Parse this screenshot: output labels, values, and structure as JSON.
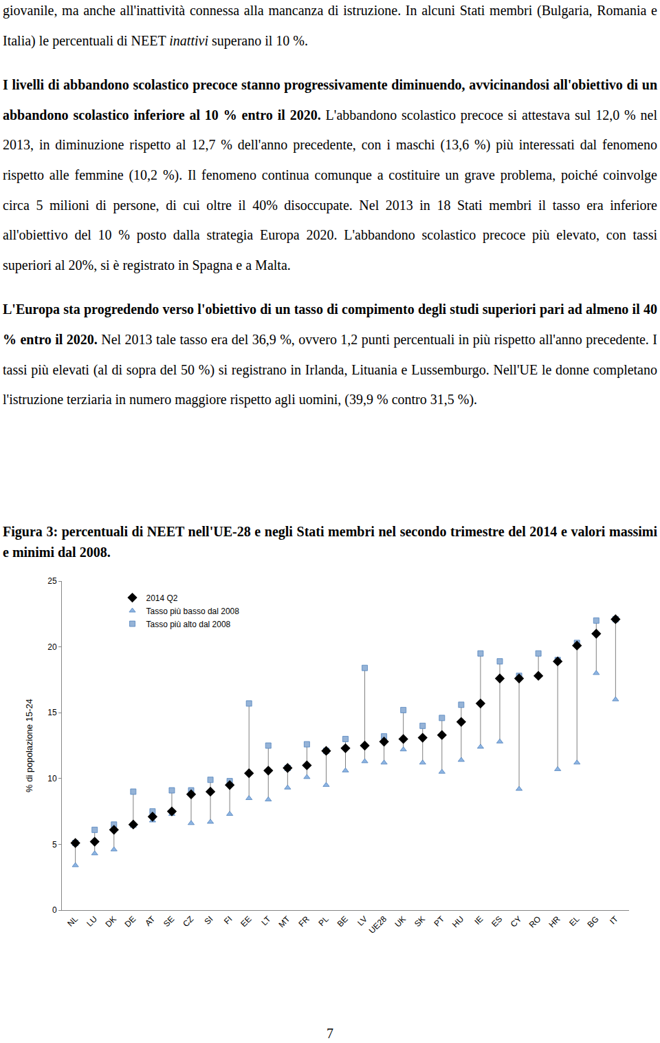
{
  "paragraphs": [
    [
      {
        "text": "giovanile, ma anche all'inattività connessa alla mancanza di istruzione. In alcuni Stati membri (Bulgaria, Romania e Italia) le percentuali di NEET "
      },
      {
        "text": "inattivi",
        "italic": true
      },
      {
        "text": " superano il 10 %."
      }
    ],
    [
      {
        "text": "I livelli di abbandono scolastico precoce stanno progressivamente diminuendo, avvicinandosi all'obiettivo di un abbandono scolastico inferiore al 10 % entro il 2020.",
        "bold": true
      },
      {
        "text": " L'abbandono scolastico precoce si attestava sul 12,0 % nel 2013, in diminuzione rispetto al 12,7 % dell'anno precedente, con i maschi (13,6 %) più interessati dal fenomeno rispetto alle femmine (10,2 %). Il fenomeno continua comunque a costituire un grave problema, poiché coinvolge circa 5 milioni di persone, di cui oltre il 40% disoccupate. Nel 2013 in 18 Stati membri il tasso era inferiore all'obiettivo del 10 %  posto dalla strategia Europa 2020. L'abbandono scolastico precoce più elevato, con tassi superiori al 20%, si è registrato in Spagna e a Malta."
      }
    ],
    [
      {
        "text": "L'Europa sta progredendo verso l'obiettivo di un tasso di compimento degli studi superiori pari ad almeno il 40 % entro il 2020.",
        "bold": true
      },
      {
        "text": " Nel 2013 tale tasso era del 36,9 %, ovvero 1,2 punti percentuali in più rispetto all'anno precedente. I tassi più elevati (al di sopra del 50 %) si registrano in Irlanda, Lituania e Lussemburgo. Nell'UE le donne completano l'istruzione terziaria in numero maggiore rispetto agli uomini, (39,9 % contro 31,5 %)."
      }
    ]
  ],
  "caption": "Figura 3: percentuali di NEET nell'UE-28 e negli Stati membri nel secondo trimestre del 2014 e valori massimi e minimi dal 2008.",
  "page_number": "7",
  "chart_data": {
    "type": "scatter",
    "ylabel": "% di popolazione 15-24",
    "categories": [
      "NL",
      "LU",
      "DK",
      "DE",
      "AT",
      "SE",
      "CZ",
      "SI",
      "FI",
      "EE",
      "LT",
      "MT",
      "FR",
      "PL",
      "BE",
      "LV",
      "UE28",
      "UK",
      "SK",
      "PT",
      "HU",
      "IE",
      "ES",
      "CY",
      "RO",
      "HR",
      "EL",
      "BG",
      "IT"
    ],
    "series": [
      {
        "name": "Tasso più alto dal 2008",
        "color": "#95b3d7",
        "marker": "square",
        "values": [
          5.1,
          6.1,
          6.5,
          9.0,
          7.5,
          9.1,
          9.1,
          9.9,
          9.8,
          15.7,
          12.5,
          10.8,
          12.6,
          12.1,
          13.0,
          18.4,
          13.2,
          15.2,
          14.0,
          14.6,
          15.6,
          19.5,
          18.9,
          17.8,
          19.5,
          19.0,
          20.3,
          22.0,
          22.1
        ]
      },
      {
        "name": "Tasso più basso dal 2008",
        "color": "#8db4e2",
        "marker": "triangle",
        "values": [
          3.4,
          4.3,
          4.6,
          6.4,
          6.8,
          7.3,
          6.6,
          6.7,
          7.3,
          8.5,
          8.4,
          9.3,
          10.1,
          9.5,
          10.6,
          11.3,
          11.2,
          12.2,
          11.2,
          10.5,
          11.4,
          12.4,
          12.8,
          9.2,
          17.8,
          10.7,
          11.2,
          18.0,
          16.0
        ]
      },
      {
        "name": "2014 Q2",
        "color": "#000000",
        "marker": "diamond",
        "values": [
          5.1,
          5.2,
          6.1,
          6.5,
          7.1,
          7.5,
          8.8,
          9.0,
          9.5,
          10.4,
          10.6,
          10.8,
          11.0,
          12.1,
          12.3,
          12.5,
          12.8,
          13.0,
          13.1,
          13.3,
          14.3,
          15.7,
          17.6,
          17.6,
          17.8,
          18.9,
          20.1,
          21.0,
          22.1
        ]
      }
    ],
    "ylim": [
      0,
      25
    ],
    "yticks": [
      0,
      5,
      10,
      15,
      20,
      25
    ],
    "grid": false,
    "legend": "top-left"
  }
}
